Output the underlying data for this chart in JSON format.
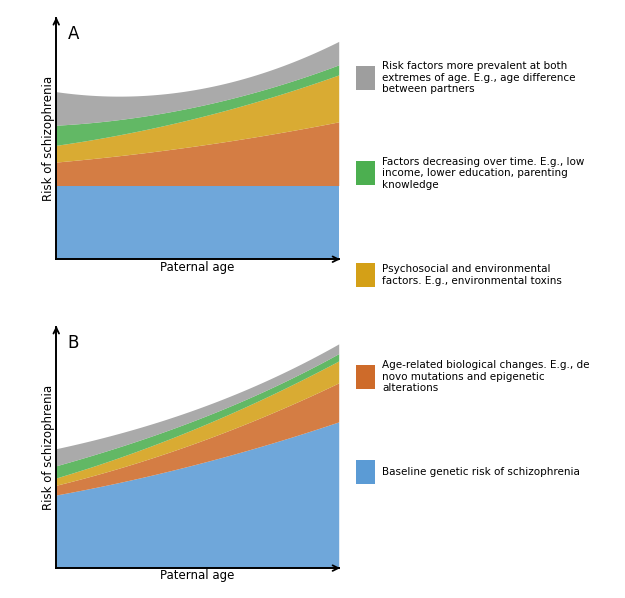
{
  "legend_items": [
    {
      "color": "#9E9E9E",
      "label": "Risk factors more prevalent at both\nextremes of age. E.g., age difference\nbetween partners"
    },
    {
      "color": "#4CAF50",
      "label": "Factors decreasing over time. E.g., low\nincome, lower education, parenting\nknowledge"
    },
    {
      "color": "#D4A017",
      "label": "Psychosocial and environmental\nfactors. E.g., environmental toxins"
    },
    {
      "color": "#CE6B2A",
      "label": "Age-related biological changes. E.g., de\nnovo mutations and epigenetic\nalterations"
    },
    {
      "color": "#5B9BD5",
      "label": "Baseline genetic risk of schizophrenia"
    }
  ],
  "colors": {
    "blue": "#5B9BD5",
    "orange": "#CE6B2A",
    "yellow": "#D4A017",
    "green": "#4CAF50",
    "gray": "#9E9E9E"
  },
  "panel_A": {
    "label": "A",
    "xlabel": "Paternal age",
    "ylabel": "Risk of schizophrenia",
    "blue_pts": [
      0.22,
      0.22,
      0.22,
      0.22
    ],
    "orange_pts": [
      0.07,
      0.1,
      0.14,
      0.19
    ],
    "yellow_pts": [
      0.05,
      0.07,
      0.1,
      0.14
    ],
    "green_pts": [
      0.06,
      0.04,
      0.03,
      0.03
    ],
    "gray_pts": [
      0.1,
      0.06,
      0.05,
      0.07
    ],
    "ylim": [
      0.0,
      0.72
    ]
  },
  "panel_B": {
    "label": "B",
    "xlabel": "Paternal age",
    "ylabel": "Risk of schizophrenia",
    "blue_pts": [
      0.3,
      0.38,
      0.48,
      0.6
    ],
    "orange_pts": [
      0.04,
      0.07,
      0.11,
      0.16
    ],
    "yellow_pts": [
      0.03,
      0.05,
      0.07,
      0.09
    ],
    "green_pts": [
      0.05,
      0.04,
      0.03,
      0.03
    ],
    "gray_pts": [
      0.07,
      0.05,
      0.04,
      0.04
    ],
    "ylim": [
      0.0,
      0.99
    ]
  },
  "background": "#FFFFFF",
  "alpha": 0.88,
  "legend_fontsize": 7.5,
  "axis_fontsize": 8.5,
  "panel_fontsize": 12
}
